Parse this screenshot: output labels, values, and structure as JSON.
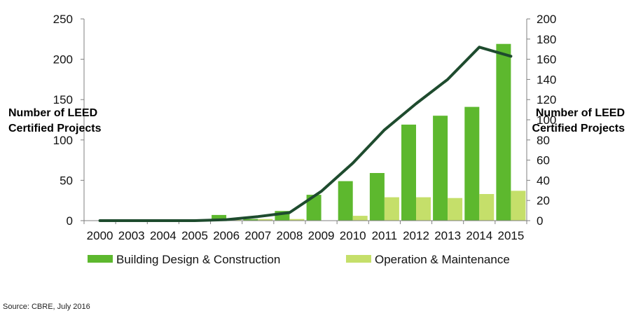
{
  "chart_data": {
    "type": "bar",
    "categories": [
      "2000",
      "2003",
      "2004",
      "2005",
      "2006",
      "2007",
      "2008",
      "2009",
      "2010",
      "2011",
      "2012",
      "2013",
      "2014",
      "2015"
    ],
    "series": [
      {
        "name": "Building Design & Construction",
        "kind": "bar",
        "axis": "left",
        "color": "#5DB82E",
        "values": [
          0,
          0,
          0,
          1,
          7,
          2,
          12,
          32,
          49,
          59,
          119,
          130,
          141,
          219
        ]
      },
      {
        "name": "Operation & Maintenance",
        "kind": "bar",
        "axis": "left",
        "color": "#C5DF6A",
        "values": [
          0,
          0,
          0,
          0,
          1,
          2,
          2,
          0,
          6,
          29,
          29,
          28,
          33,
          37
        ]
      },
      {
        "name": "",
        "kind": "line",
        "axis": "right",
        "color": "#1E4B2E",
        "values": [
          0,
          0,
          0,
          0,
          1,
          4,
          8,
          29,
          57,
          90,
          116,
          140,
          172,
          163
        ]
      }
    ],
    "ylabel": "Number of  LEED\nCertified Projects",
    "y2label": "Number of LEED\nCertified Projects",
    "ylim": [
      0,
      250
    ],
    "yticks": [
      "0",
      "50",
      "100",
      "150",
      "200",
      "250"
    ],
    "y2lim": [
      0,
      200
    ],
    "y2ticks": [
      "0",
      "20",
      "40",
      "60",
      "80",
      "100",
      "120",
      "140",
      "160",
      "180",
      "200"
    ],
    "grid": false,
    "legend_position": "bottom"
  },
  "source": "Source: CBRE, July 2016"
}
